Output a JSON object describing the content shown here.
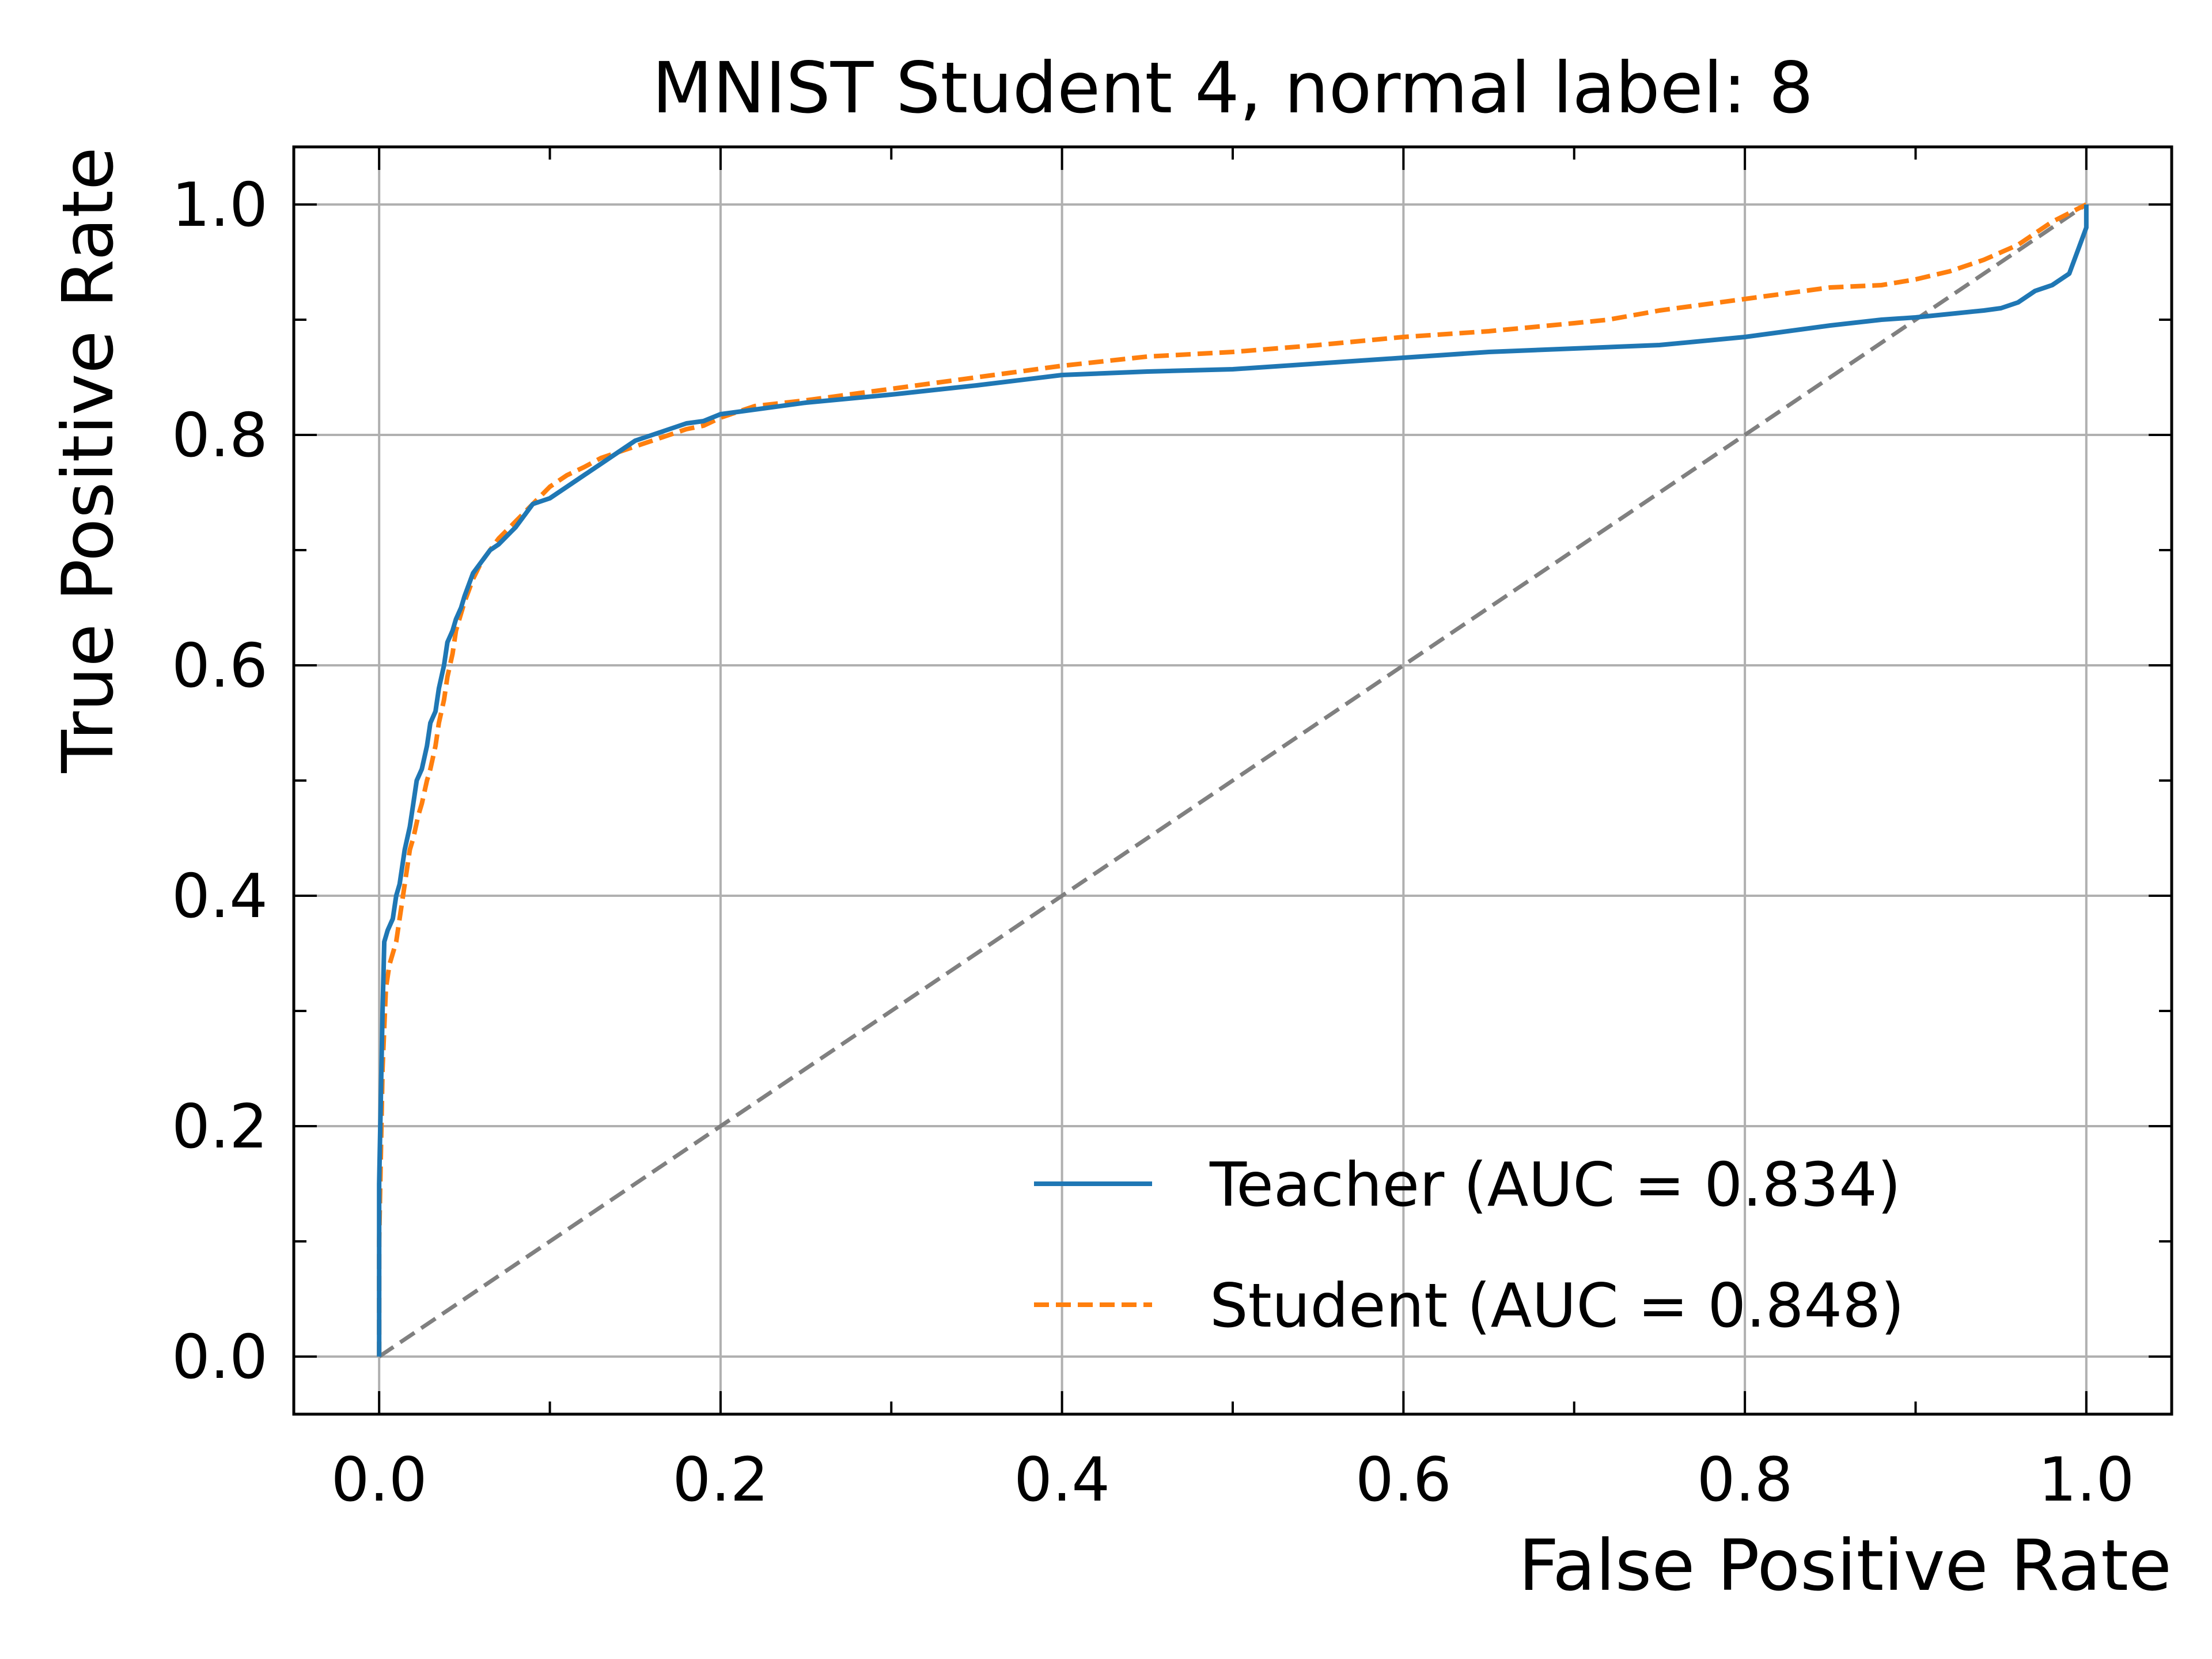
{
  "chart_data": {
    "type": "line",
    "title": "MNIST Student 4, normal label: 8",
    "xlabel": "False Positive Rate",
    "ylabel": "True Positive Rate",
    "xlim": [
      -0.05,
      1.05
    ],
    "ylim": [
      -0.05,
      1.05
    ],
    "xticks": [
      0.0,
      0.2,
      0.4,
      0.6,
      0.8,
      1.0
    ],
    "yticks": [
      0.0,
      0.2,
      0.4,
      0.6,
      0.8,
      1.0
    ],
    "xtick_labels": [
      "0.0",
      "0.2",
      "0.4",
      "0.6",
      "0.8",
      "1.0"
    ],
    "ytick_labels": [
      "0.0",
      "0.2",
      "0.4",
      "0.6",
      "0.8",
      "1.0"
    ],
    "xminor": [
      0.1,
      0.3,
      0.5,
      0.7,
      0.9
    ],
    "yminor": [
      0.1,
      0.3,
      0.5,
      0.7,
      0.9
    ],
    "grid": true,
    "legend_position": "lower-right",
    "series": [
      {
        "name": "Teacher (AUC = 0.834)",
        "color": "#1f77b4",
        "style": "solid",
        "x": [
          0.0,
          0.0,
          0.002,
          0.003,
          0.005,
          0.008,
          0.01,
          0.012,
          0.015,
          0.018,
          0.02,
          0.022,
          0.025,
          0.028,
          0.03,
          0.033,
          0.035,
          0.038,
          0.04,
          0.043,
          0.045,
          0.048,
          0.05,
          0.055,
          0.06,
          0.065,
          0.07,
          0.08,
          0.09,
          0.1,
          0.11,
          0.12,
          0.13,
          0.14,
          0.15,
          0.16,
          0.17,
          0.18,
          0.19,
          0.2,
          0.22,
          0.25,
          0.3,
          0.35,
          0.4,
          0.45,
          0.5,
          0.55,
          0.6,
          0.65,
          0.7,
          0.75,
          0.8,
          0.85,
          0.88,
          0.9,
          0.92,
          0.94,
          0.95,
          0.96,
          0.97,
          0.98,
          0.99,
          0.995,
          1.0,
          1.0
        ],
        "y": [
          0.0,
          0.15,
          0.3,
          0.36,
          0.37,
          0.38,
          0.4,
          0.41,
          0.44,
          0.46,
          0.48,
          0.5,
          0.51,
          0.53,
          0.55,
          0.56,
          0.58,
          0.6,
          0.62,
          0.63,
          0.64,
          0.65,
          0.66,
          0.68,
          0.69,
          0.7,
          0.705,
          0.72,
          0.74,
          0.745,
          0.755,
          0.765,
          0.775,
          0.785,
          0.795,
          0.8,
          0.805,
          0.81,
          0.812,
          0.818,
          0.822,
          0.828,
          0.835,
          0.843,
          0.852,
          0.855,
          0.857,
          0.862,
          0.867,
          0.872,
          0.875,
          0.878,
          0.885,
          0.895,
          0.9,
          0.902,
          0.905,
          0.908,
          0.91,
          0.915,
          0.925,
          0.93,
          0.94,
          0.96,
          0.98,
          1.0
        ]
      },
      {
        "name": "Student (AUC = 0.848)",
        "color": "#ff7f0e",
        "style": "dashed",
        "x": [
          0.0,
          0.0,
          0.002,
          0.004,
          0.006,
          0.008,
          0.01,
          0.012,
          0.015,
          0.018,
          0.02,
          0.023,
          0.025,
          0.028,
          0.03,
          0.033,
          0.035,
          0.038,
          0.04,
          0.043,
          0.045,
          0.048,
          0.05,
          0.055,
          0.06,
          0.065,
          0.07,
          0.08,
          0.09,
          0.1,
          0.11,
          0.12,
          0.13,
          0.14,
          0.15,
          0.16,
          0.17,
          0.18,
          0.19,
          0.2,
          0.22,
          0.25,
          0.3,
          0.35,
          0.4,
          0.45,
          0.5,
          0.55,
          0.6,
          0.65,
          0.7,
          0.72,
          0.75,
          0.8,
          0.85,
          0.88,
          0.9,
          0.92,
          0.94,
          0.96,
          0.98,
          1.0
        ],
        "y": [
          0.0,
          0.1,
          0.25,
          0.32,
          0.34,
          0.35,
          0.36,
          0.38,
          0.41,
          0.44,
          0.45,
          0.47,
          0.48,
          0.5,
          0.51,
          0.53,
          0.55,
          0.57,
          0.59,
          0.61,
          0.63,
          0.645,
          0.655,
          0.675,
          0.69,
          0.7,
          0.71,
          0.725,
          0.74,
          0.755,
          0.765,
          0.772,
          0.78,
          0.785,
          0.79,
          0.795,
          0.8,
          0.805,
          0.808,
          0.815,
          0.825,
          0.83,
          0.84,
          0.85,
          0.86,
          0.868,
          0.872,
          0.878,
          0.885,
          0.89,
          0.897,
          0.9,
          0.908,
          0.918,
          0.928,
          0.93,
          0.935,
          0.942,
          0.952,
          0.965,
          0.985,
          1.0
        ]
      },
      {
        "name": "",
        "color": "#808080",
        "style": "dashed",
        "x": [
          0.0,
          1.0
        ],
        "y": [
          0.0,
          1.0
        ]
      }
    ]
  }
}
